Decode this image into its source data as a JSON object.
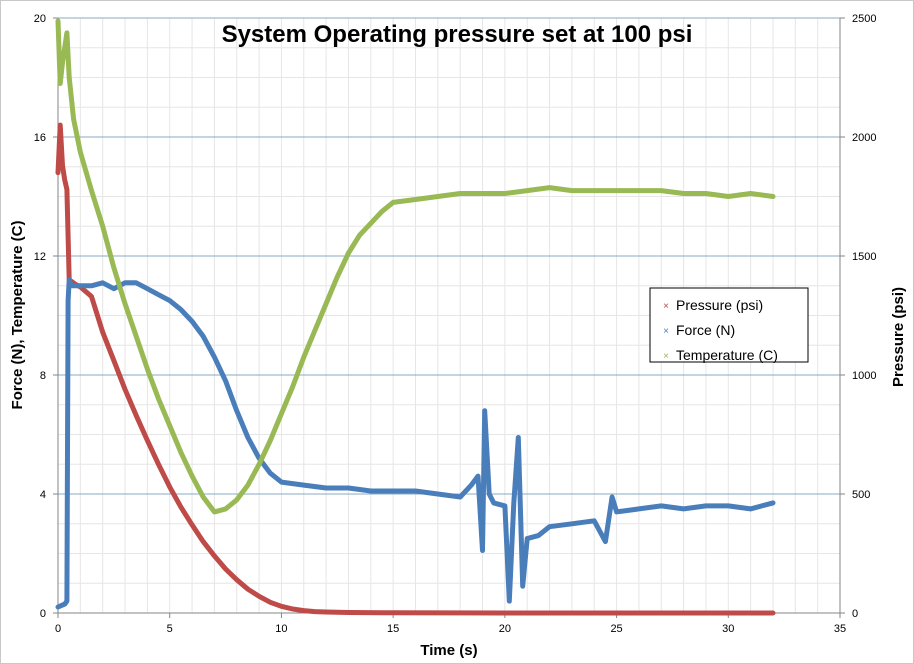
{
  "chart_data": {
    "type": "line",
    "title": "System Operating pressure set at 100 psi",
    "xlabel": "Time (s)",
    "ylabel_left": "Force (N), Temperature (C)",
    "ylabel_right": "Pressure (psi)",
    "xlim": [
      0,
      35
    ],
    "ylim_left": [
      0,
      20
    ],
    "ylim_right": [
      0,
      2500
    ],
    "x_ticks": [
      "0",
      "5",
      "10",
      "15",
      "20",
      "25",
      "30",
      "35"
    ],
    "y_left_ticks": [
      "0",
      "4",
      "8",
      "12",
      "16",
      "20"
    ],
    "y_right_ticks": [
      "0",
      "500",
      "1000",
      "1500",
      "2000",
      "2500"
    ],
    "grid": true,
    "legend_position": "right",
    "series": [
      {
        "name": "Pressure (psi)",
        "axis": "right",
        "color": "#be4b48",
        "x": [
          0.0,
          0.1,
          0.2,
          0.3,
          0.4,
          0.5,
          0.8,
          1.0,
          1.5,
          2.0,
          2.5,
          3.0,
          3.5,
          4.0,
          4.5,
          5.0,
          5.5,
          6.0,
          6.5,
          7.0,
          7.5,
          8.0,
          8.5,
          9.0,
          9.5,
          10.0,
          10.5,
          11.0,
          11.5,
          12.0,
          13.0,
          15.0,
          20.0,
          25.0,
          30.0,
          32.0
        ],
        "y": [
          1850,
          2050,
          1880,
          1820,
          1780,
          1400,
          1380,
          1370,
          1330,
          1180,
          1060,
          940,
          830,
          725,
          625,
          530,
          445,
          370,
          300,
          240,
          185,
          140,
          100,
          70,
          45,
          28,
          17,
          10,
          6,
          4,
          2,
          1,
          0,
          0,
          0,
          0
        ]
      },
      {
        "name": "Force (N)",
        "axis": "left",
        "color": "#4a7ebb",
        "x": [
          0.0,
          0.3,
          0.4,
          0.45,
          0.5,
          0.6,
          1.0,
          1.5,
          2.0,
          2.5,
          3.0,
          3.5,
          4.0,
          4.5,
          5.0,
          5.5,
          6.0,
          6.5,
          7.0,
          7.5,
          8.0,
          8.5,
          9.0,
          9.5,
          10.0,
          11.0,
          12.0,
          13.0,
          14.0,
          15.0,
          16.0,
          17.0,
          18.0,
          18.5,
          18.8,
          19.0,
          19.1,
          19.3,
          19.5,
          20.0,
          20.2,
          20.4,
          20.6,
          20.8,
          21.0,
          21.5,
          22.0,
          23.0,
          24.0,
          24.5,
          24.8,
          25.0,
          26.0,
          27.0,
          28.0,
          29.0,
          30.0,
          31.0,
          32.0
        ],
        "y": [
          0.2,
          0.3,
          0.4,
          10.5,
          11.2,
          11.0,
          11.0,
          11.0,
          11.1,
          10.9,
          11.1,
          11.1,
          10.9,
          10.7,
          10.5,
          10.2,
          9.8,
          9.3,
          8.6,
          7.8,
          6.8,
          5.9,
          5.2,
          4.7,
          4.4,
          4.3,
          4.2,
          4.2,
          4.1,
          4.1,
          4.1,
          4.0,
          3.9,
          4.3,
          4.6,
          2.1,
          6.8,
          4.0,
          3.7,
          3.6,
          0.4,
          3.7,
          5.9,
          0.9,
          2.5,
          2.6,
          2.9,
          3.0,
          3.1,
          2.4,
          3.9,
          3.4,
          3.5,
          3.6,
          3.5,
          3.6,
          3.6,
          3.5,
          3.7
        ]
      },
      {
        "name": "Temperature (C)",
        "axis": "left",
        "color": "#98b954",
        "x": [
          0.0,
          0.1,
          0.2,
          0.3,
          0.4,
          0.5,
          0.7,
          1.0,
          1.5,
          2.0,
          2.5,
          3.0,
          3.5,
          4.0,
          4.5,
          5.0,
          5.5,
          6.0,
          6.5,
          7.0,
          7.5,
          8.0,
          8.5,
          9.0,
          9.5,
          10.0,
          10.5,
          11.0,
          11.5,
          12.0,
          12.5,
          13.0,
          13.5,
          14.0,
          14.5,
          15.0,
          16.0,
          17.0,
          18.0,
          19.0,
          20.0,
          21.0,
          22.0,
          23.0,
          24.0,
          25.0,
          26.0,
          27.0,
          28.0,
          29.0,
          30.0,
          31.0,
          32.0
        ],
        "y": [
          19.9,
          17.8,
          18.5,
          19.0,
          19.5,
          18.0,
          16.6,
          15.5,
          14.2,
          13.0,
          11.6,
          10.4,
          9.3,
          8.2,
          7.2,
          6.3,
          5.4,
          4.6,
          3.9,
          3.4,
          3.5,
          3.8,
          4.3,
          5.0,
          5.8,
          6.7,
          7.6,
          8.6,
          9.5,
          10.4,
          11.3,
          12.1,
          12.7,
          13.1,
          13.5,
          13.8,
          13.9,
          14.0,
          14.1,
          14.1,
          14.1,
          14.2,
          14.3,
          14.2,
          14.2,
          14.2,
          14.2,
          14.2,
          14.1,
          14.1,
          14.0,
          14.1,
          14.0
        ]
      }
    ]
  }
}
